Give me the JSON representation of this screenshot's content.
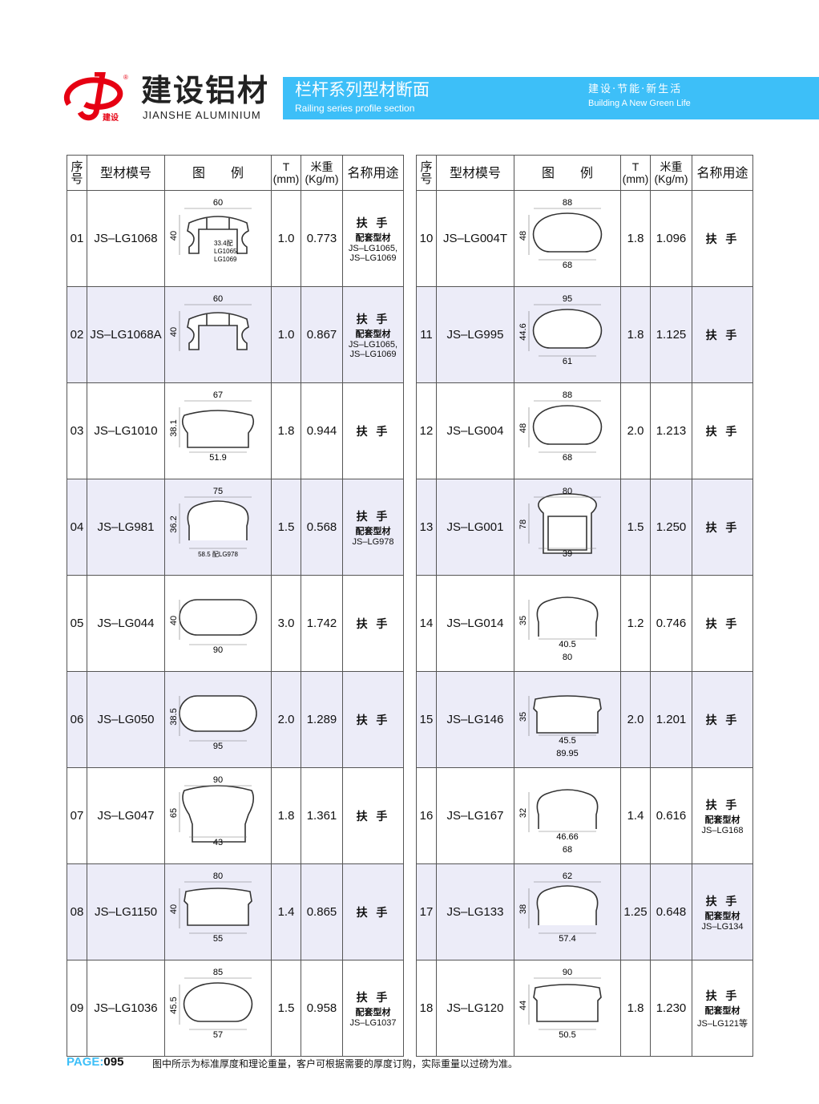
{
  "header": {
    "brand_cn": "建设铝材",
    "brand_en": "JIANSHE ALUMINIUM",
    "logo_text": "建设",
    "title_cn": "栏杆系列型材断面",
    "title_en": "Railing series profile section",
    "slogan_cn": "建设·节能·新生活",
    "slogan_en": "Building A New Green Life",
    "accent_color": "#3dbff8",
    "logo_color": "#e60012"
  },
  "columns": [
    "序号",
    "型材模号",
    "图　　例",
    "T",
    "(mm)",
    "米重",
    "(Kg/m)",
    "名称用途"
  ],
  "left_rows": [
    {
      "no": "01",
      "model": "JS–LG1068",
      "shape": "mushroom",
      "w": "60",
      "h": "40",
      "b": "",
      "note": [
        "33.4配",
        "LG1065,",
        "LG1069"
      ],
      "t": "1.0",
      "kg": "0.773",
      "use": "扶 手",
      "use_sub": "配套型材",
      "use_ref": [
        "JS–LG1065,",
        "JS–LG1069"
      ]
    },
    {
      "no": "02",
      "model": "JS–LG1068A",
      "shape": "mushroom",
      "w": "60",
      "h": "40",
      "b": "",
      "note": [],
      "t": "1.0",
      "kg": "0.867",
      "use": "扶 手",
      "use_sub": "配套型材",
      "use_ref": [
        "JS–LG1065,",
        "JS–LG1069"
      ]
    },
    {
      "no": "03",
      "model": "JS–LG1010",
      "shape": "cap",
      "w": "67",
      "h": "38.1",
      "b": "51.9",
      "note": [],
      "t": "1.8",
      "kg": "0.944",
      "use": "扶 手",
      "use_sub": "",
      "use_ref": []
    },
    {
      "no": "04",
      "model": "JS–LG981",
      "shape": "arch",
      "w": "75",
      "h": "36.2",
      "b": "58.5 配LG978",
      "note": [],
      "t": "1.5",
      "kg": "0.568",
      "use": "扶 手",
      "use_sub": "配套型材",
      "use_ref": [
        "JS–LG978"
      ]
    },
    {
      "no": "05",
      "model": "JS–LG044",
      "shape": "stadium",
      "w": "",
      "h": "40",
      "b": "90",
      "note": [],
      "t": "3.0",
      "kg": "1.742",
      "use": "扶 手",
      "use_sub": "",
      "use_ref": []
    },
    {
      "no": "06",
      "model": "JS–LG050",
      "shape": "stadium",
      "w": "",
      "h": "38.5",
      "b": "95",
      "note": [],
      "t": "2.0",
      "kg": "1.289",
      "use": "扶 手",
      "use_sub": "",
      "use_ref": []
    },
    {
      "no": "07",
      "model": "JS–LG047",
      "shape": "tall",
      "w": "90",
      "h": "65",
      "b": "43",
      "note": [],
      "t": "1.8",
      "kg": "1.361",
      "use": "扶 手",
      "use_sub": "",
      "use_ref": []
    },
    {
      "no": "08",
      "model": "JS–LG1150",
      "shape": "flat",
      "w": "80",
      "h": "40",
      "b": "55",
      "note": [],
      "t": "1.4",
      "kg": "0.865",
      "use": "扶 手",
      "use_sub": "",
      "use_ref": []
    },
    {
      "no": "09",
      "model": "JS–LG1036",
      "shape": "oval",
      "w": "85",
      "h": "45.5",
      "b": "57",
      "note": [],
      "t": "1.5",
      "kg": "0.958",
      "use": "扶 手",
      "use_sub": "配套型材",
      "use_ref": [
        "JS–LG1037"
      ]
    }
  ],
  "right_rows": [
    {
      "no": "10",
      "model": "JS–LG004T",
      "shape": "oval",
      "w": "88",
      "h": "48",
      "b": "68",
      "note": [],
      "t": "1.8",
      "kg": "1.096",
      "use": "扶 手",
      "use_sub": "",
      "use_ref": []
    },
    {
      "no": "11",
      "model": "JS–LG995",
      "shape": "oval",
      "w": "95",
      "h": "44.6",
      "b": "61",
      "note": [],
      "t": "1.8",
      "kg": "1.125",
      "use": "扶 手",
      "use_sub": "",
      "use_ref": []
    },
    {
      "no": "12",
      "model": "JS–LG004",
      "shape": "oval",
      "w": "88",
      "h": "48",
      "b": "68",
      "note": [],
      "t": "2.0",
      "kg": "1.213",
      "use": "扶 手",
      "use_sub": "",
      "use_ref": []
    },
    {
      "no": "13",
      "model": "JS–LG001",
      "shape": "box",
      "w": "80",
      "h": "78",
      "b": "39",
      "note": [],
      "t": "1.5",
      "kg": "1.250",
      "use": "扶 手",
      "use_sub": "",
      "use_ref": []
    },
    {
      "no": "14",
      "model": "JS–LG014",
      "shape": "arch",
      "w": "",
      "h": "35",
      "b": "40.5",
      "b2": "80",
      "note": [],
      "t": "1.2",
      "kg": "0.746",
      "use": "扶 手",
      "use_sub": "",
      "use_ref": []
    },
    {
      "no": "15",
      "model": "JS–LG146",
      "shape": "flat",
      "w": "",
      "h": "35",
      "b": "45.5",
      "b2": "89.95",
      "note": [],
      "t": "2.0",
      "kg": "1.201",
      "use": "扶 手",
      "use_sub": "",
      "use_ref": []
    },
    {
      "no": "16",
      "model": "JS–LG167",
      "shape": "arch",
      "w": "",
      "h": "32",
      "b": "46.66",
      "b2": "68",
      "note": [],
      "t": "1.4",
      "kg": "0.616",
      "use": "扶 手",
      "use_sub": "配套型材",
      "use_ref": [
        "JS–LG168"
      ]
    },
    {
      "no": "17",
      "model": "JS–LG133",
      "shape": "arch",
      "w": "62",
      "h": "38",
      "b": "57.4",
      "note": [],
      "t": "1.25",
      "kg": "0.648",
      "use": "扶 手",
      "use_sub": "配套型材",
      "use_ref": [
        "JS–LG134"
      ]
    },
    {
      "no": "18",
      "model": "JS–LG120",
      "shape": "flat",
      "w": "90",
      "h": "44",
      "b": "50.5",
      "note": [],
      "t": "1.8",
      "kg": "1.230",
      "use": "扶 手",
      "use_sub": "配套型材",
      "use_ref": [
        "JS–LG121等"
      ]
    }
  ],
  "footer": {
    "page_label": "PAGE:",
    "page_number": "095",
    "note": "图中所示为标准厚度和理论重量，客户可根据需要的厚度订购，实际重量以过磅为准。"
  }
}
